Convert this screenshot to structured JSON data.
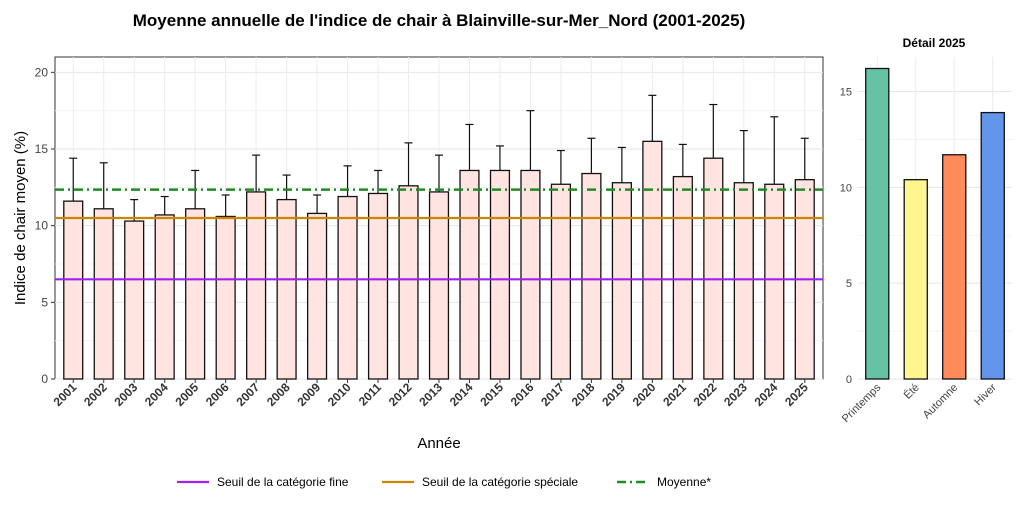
{
  "chart_data": [
    {
      "type": "bar",
      "title": "Moyenne annuelle de l'indice de chair à Blainville-sur-Mer_Nord (2001-2025)",
      "xlabel": "Année",
      "ylabel": "Indice de chair moyen (%)",
      "ylim": [
        0,
        21
      ],
      "yticks": [
        0,
        5,
        10,
        15,
        20
      ],
      "grid": true,
      "bar_color": "#FFE4E1",
      "categories": [
        "2001",
        "2002",
        "2003",
        "2004",
        "2005",
        "2006",
        "2007",
        "2008",
        "2009",
        "2010",
        "2011",
        "2012",
        "2013",
        "2014",
        "2015",
        "2016",
        "2017",
        "2018",
        "2019",
        "2020",
        "2021",
        "2022",
        "2023",
        "2024",
        "2025"
      ],
      "values": [
        11.6,
        11.1,
        10.3,
        10.7,
        11.1,
        10.6,
        12.2,
        11.7,
        10.8,
        11.9,
        12.1,
        12.6,
        12.2,
        13.6,
        13.6,
        13.6,
        12.7,
        13.4,
        12.8,
        15.5,
        13.2,
        14.4,
        12.8,
        12.7,
        13.0
      ],
      "error_upper": [
        14.4,
        14.1,
        11.7,
        11.9,
        13.6,
        12.0,
        14.6,
        13.3,
        12.0,
        13.9,
        13.6,
        15.4,
        14.6,
        16.6,
        15.2,
        17.5,
        14.9,
        15.7,
        15.1,
        18.5,
        15.3,
        17.9,
        16.2,
        17.1,
        15.7
      ],
      "reference_lines": [
        {
          "name": "Seuil de la catégorie fine",
          "value": 6.5,
          "color": "#A020F0",
          "style": "solid"
        },
        {
          "name": "Seuil de la catégorie spéciale",
          "value": 10.5,
          "color": "#CC8500",
          "style": "solid"
        },
        {
          "name": "Moyenne*",
          "value": 12.35,
          "color": "#228B22",
          "style": "dashdot"
        }
      ],
      "legend_position": "bottom"
    },
    {
      "type": "bar",
      "title": "Détail 2025",
      "ylim": [
        0,
        16.8
      ],
      "yticks": [
        0,
        5,
        10,
        15
      ],
      "grid": true,
      "categories": [
        "Printemps",
        "Été",
        "Automne",
        "Hiver"
      ],
      "values": [
        16.2,
        10.4,
        11.7,
        13.9
      ],
      "colors": [
        "#66C2A5",
        "#FFF68F",
        "#FF8C5A",
        "#6495ED"
      ]
    }
  ]
}
